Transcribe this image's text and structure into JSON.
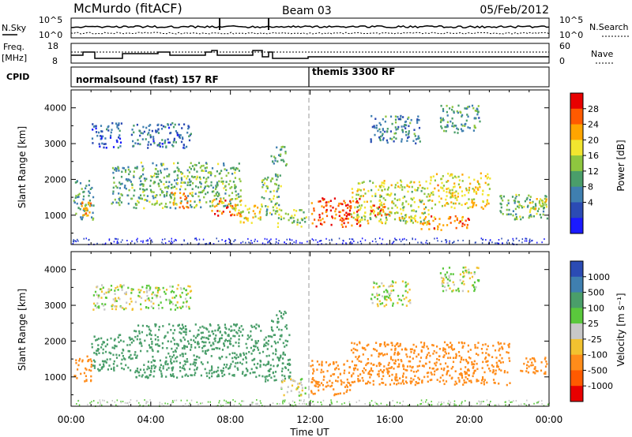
{
  "header": {
    "station": "McMurdo (fitACF)",
    "beam": "Beam 03",
    "date": "05/Feb/2012"
  },
  "summary_panels": {
    "nsky": {
      "label": "N.Sky",
      "ticks": [
        "10^5",
        "10^0"
      ],
      "right_label": "N.Search",
      "right_ticks": [
        "10^5",
        "10^0"
      ]
    },
    "freq": {
      "label_line1": "Freq.",
      "label_line2": "[MHz]",
      "ticks": [
        "18",
        "8"
      ],
      "right_label": "Nave",
      "right_ticks": [
        "60",
        "0"
      ]
    },
    "cpid": {
      "label": "CPID",
      "segments": [
        {
          "name": "normalsound (fast) 157 RF",
          "start_hour": 0,
          "end_hour": 12
        },
        {
          "name": "themis 3300 RF",
          "start_hour": 12,
          "end_hour": 24
        }
      ]
    }
  },
  "time_axis": {
    "label": "Time UT",
    "ticks": [
      "00:00",
      "04:00",
      "08:00",
      "12:00",
      "16:00",
      "20:00",
      "00:00"
    ]
  },
  "chart_data": [
    {
      "type": "heatmap",
      "title": "Power",
      "xlabel": "Time UT",
      "ylabel": "Slant Range [km]",
      "xlim": [
        0,
        24
      ],
      "ylim": [
        180,
        4500
      ],
      "yticks": [
        "1000",
        "2000",
        "3000",
        "4000"
      ],
      "colorbar": {
        "label": "Power [dB]",
        "ticks": [
          "28",
          "24",
          "20",
          "16",
          "12",
          "8",
          "4"
        ],
        "colors": [
          "#1a1aff",
          "#2b4bb4",
          "#3f7fb0",
          "#4a9e6a",
          "#8ec63f",
          "#f2e52f",
          "#ffa500",
          "#ff5a00",
          "#e80000"
        ]
      },
      "regions": [
        {
          "t0": 0.1,
          "t1": 1.1,
          "r0": 900,
          "r1": 2000,
          "value": 12
        },
        {
          "t0": 0.5,
          "t1": 1.0,
          "r0": 1000,
          "r1": 1400,
          "value": 24
        },
        {
          "t0": 1.0,
          "t1": 2.5,
          "r0": 2900,
          "r1": 3600,
          "value": 6
        },
        {
          "t0": 2.0,
          "t1": 3.0,
          "r0": 1300,
          "r1": 2400,
          "value": 12
        },
        {
          "t0": 3.0,
          "t1": 6.0,
          "r0": 2900,
          "r1": 3600,
          "value": 8
        },
        {
          "t0": 3.0,
          "t1": 8.5,
          "r0": 1200,
          "r1": 2500,
          "value": 14
        },
        {
          "t0": 5.0,
          "t1": 6.0,
          "r0": 1200,
          "r1": 1700,
          "value": 22
        },
        {
          "t0": 7.0,
          "t1": 8.5,
          "r0": 1000,
          "r1": 1500,
          "value": 26
        },
        {
          "t0": 8.0,
          "t1": 9.5,
          "r0": 800,
          "r1": 1300,
          "value": 20
        },
        {
          "t0": 9.5,
          "t1": 10.5,
          "r0": 1000,
          "r1": 2200,
          "value": 14
        },
        {
          "t0": 10.0,
          "t1": 10.8,
          "r0": 2400,
          "r1": 3000,
          "value": 12
        },
        {
          "t0": 10.3,
          "t1": 11.8,
          "r0": 700,
          "r1": 1200,
          "value": 16
        },
        {
          "t0": 12.0,
          "t1": 14.5,
          "r0": 700,
          "r1": 1500,
          "value": 27
        },
        {
          "t0": 14.0,
          "t1": 18.0,
          "r0": 800,
          "r1": 2000,
          "value": 18
        },
        {
          "t0": 15.0,
          "t1": 16.0,
          "r0": 1000,
          "r1": 1300,
          "value": 26
        },
        {
          "t0": 17.5,
          "t1": 20.0,
          "r0": 600,
          "r1": 1000,
          "value": 25
        },
        {
          "t0": 18.0,
          "t1": 21.0,
          "r0": 1200,
          "r1": 2200,
          "value": 20
        },
        {
          "t0": 15.0,
          "t1": 17.5,
          "r0": 3000,
          "r1": 3800,
          "value": 10
        },
        {
          "t0": 18.5,
          "t1": 20.5,
          "r0": 3300,
          "r1": 4100,
          "value": 12
        },
        {
          "t0": 21.5,
          "t1": 23.9,
          "r0": 900,
          "r1": 1600,
          "value": 14
        },
        {
          "t0": 23.0,
          "t1": 23.9,
          "r0": 1200,
          "r1": 1500,
          "value": 20
        }
      ]
    },
    {
      "type": "heatmap",
      "title": "Velocity",
      "xlabel": "Time UT",
      "ylabel": "Slant Range [km]",
      "xlim": [
        0,
        24
      ],
      "ylim": [
        180,
        4500
      ],
      "yticks": [
        "1000",
        "2000",
        "3000",
        "4000"
      ],
      "colorbar": {
        "label": "Velocity [m s⁻¹]",
        "ticks": [
          "1000",
          "500",
          "100",
          "25",
          "-25",
          "-100",
          "-500",
          "-1000"
        ],
        "colors": [
          "#2b4bb4",
          "#3f7fb0",
          "#4a9e6a",
          "#5ac83c",
          "#c8c8c8",
          "#f2c230",
          "#ff8c1a",
          "#ff5a00",
          "#e80000"
        ]
      },
      "regions": [
        {
          "t0": 0.1,
          "t1": 1.0,
          "r0": 900,
          "r1": 1600,
          "value": -300
        },
        {
          "t0": 1.0,
          "t1": 3.0,
          "r0": 1200,
          "r1": 2200,
          "value": 200
        },
        {
          "t0": 1.0,
          "t1": 6.0,
          "r0": 2900,
          "r1": 3600,
          "value": 0
        },
        {
          "t0": 3.0,
          "t1": 9.5,
          "r0": 1000,
          "r1": 2500,
          "value": 250
        },
        {
          "t0": 9.5,
          "t1": 11.0,
          "r0": 900,
          "r1": 2200,
          "value": 250
        },
        {
          "t0": 10.0,
          "t1": 10.8,
          "r0": 2300,
          "r1": 2900,
          "value": 250
        },
        {
          "t0": 10.5,
          "t1": 11.8,
          "r0": 500,
          "r1": 1000,
          "value": 0
        },
        {
          "t0": 12.0,
          "t1": 14.0,
          "r0": 500,
          "r1": 1500,
          "value": -300
        },
        {
          "t0": 14.0,
          "t1": 22.0,
          "r0": 800,
          "r1": 2000,
          "value": -300
        },
        {
          "t0": 22.5,
          "t1": 23.9,
          "r0": 1100,
          "r1": 1600,
          "value": -300
        },
        {
          "t0": 15.0,
          "t1": 17.0,
          "r0": 3000,
          "r1": 3700,
          "value": 0
        },
        {
          "t0": 18.5,
          "t1": 20.5,
          "r0": 3400,
          "r1": 4100,
          "value": 0
        }
      ]
    }
  ],
  "colors": {
    "frame": "#000000",
    "background": "#ffffff",
    "ground_scatter": "#b8b8b8"
  }
}
